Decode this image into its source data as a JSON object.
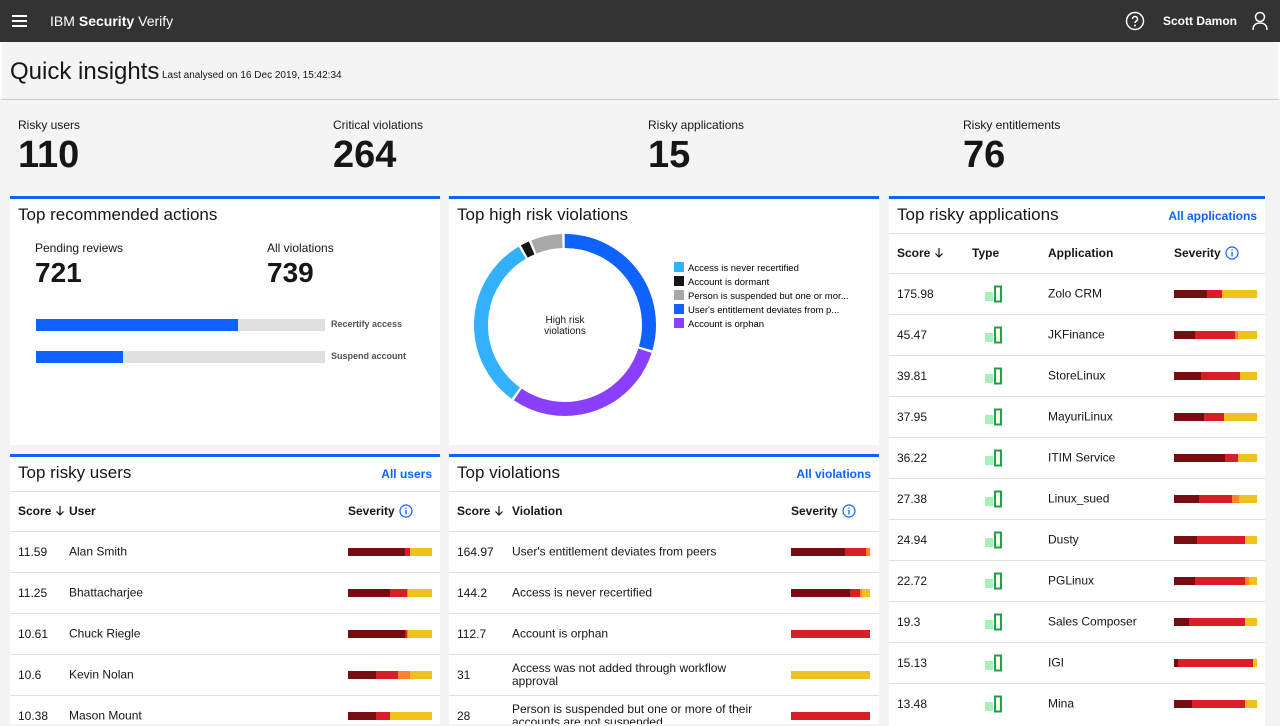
{
  "header": {
    "brand": "IBM",
    "product": "Security",
    "product_suffix": "Verify",
    "user": "Scott Damon"
  },
  "page": {
    "title": "Quick insights",
    "subtitle": "Last analysed on 16 Dec 2019, 15:42:34"
  },
  "metrics": [
    {
      "label": "Risky users",
      "value": 110
    },
    {
      "label": "Critical violations",
      "value": 264
    },
    {
      "label": "Risky applications",
      "value": 15
    },
    {
      "label": "Risky entitlements",
      "value": 76
    }
  ],
  "severity_colors": [
    "#750e13",
    "#da1e28",
    "#ff832b",
    "#f1c21b"
  ],
  "actions": {
    "title": "Top recommended actions",
    "stats": [
      {
        "label": "Pending reviews",
        "value": 721
      },
      {
        "label": "All violations",
        "value": 739
      }
    ],
    "bars": [
      {
        "label": "Recertify access",
        "value": 70
      },
      {
        "label": "Suspend account",
        "value": 30
      }
    ]
  },
  "violations_chart": {
    "title": "Top high risk violations",
    "center_label": "High risk violations",
    "segments": [
      {
        "label": "Access is never recertified",
        "color": "#33b1ff",
        "value": 32
      },
      {
        "label": "Account is dormant",
        "color": "#161616",
        "value": 2
      },
      {
        "label": "Person is suspended but one or mor...",
        "color": "#a8a8a8",
        "value": 6
      },
      {
        "label": "User's entitlement deviates from p...",
        "color": "#0f62fe",
        "value": 30
      },
      {
        "label": "Account is orphan",
        "color": "#8a3ffc",
        "value": 30
      }
    ]
  },
  "risky_users": {
    "title": "Top risky users",
    "link": "All users",
    "columns": [
      "Score",
      "User",
      "Severity"
    ],
    "rows": [
      {
        "score": 11.59,
        "name": "Alan Smith",
        "severity": [
          68,
          6,
          0,
          26
        ]
      },
      {
        "score": 11.25,
        "name": "Bhattacharjee",
        "severity": [
          50,
          20,
          2,
          28
        ]
      },
      {
        "score": 10.61,
        "name": "Chuck Riegle",
        "severity": [
          68,
          2,
          2,
          28
        ]
      },
      {
        "score": 10.6,
        "name": "Kevin Nolan",
        "severity": [
          33,
          27,
          14,
          26
        ]
      },
      {
        "score": 10.38,
        "name": "Mason Mount",
        "severity": [
          33,
          17,
          0,
          50
        ]
      }
    ]
  },
  "violations": {
    "title": "Top violations",
    "link": "All violations",
    "columns": [
      "Score",
      "Violation",
      "Severity"
    ],
    "rows": [
      {
        "score": 164.97,
        "name": "User's entitlement deviates from peers",
        "severity": [
          68,
          27,
          5,
          0
        ]
      },
      {
        "score": 144.2,
        "name": "Access is never recertified",
        "severity": [
          75,
          12,
          3,
          10
        ]
      },
      {
        "score": 112.7,
        "name": "Account is orphan",
        "severity": [
          0,
          100,
          0,
          0
        ]
      },
      {
        "score": 31,
        "name": "Access was not added through workflow approval",
        "severity": [
          0,
          0,
          0,
          100
        ]
      },
      {
        "score": 28,
        "name": "Person is suspended but one or more of their accounts are not suspended",
        "severity": [
          0,
          100,
          0,
          0
        ]
      }
    ]
  },
  "applications": {
    "title": "Top risky applications",
    "link": "All applications",
    "columns": [
      "Score",
      "Type",
      "Application",
      "Severity"
    ],
    "rows": [
      {
        "score": 175.98,
        "name": "Zolo CRM",
        "severity": [
          40,
          18,
          0,
          42
        ]
      },
      {
        "score": 45.47,
        "name": "JKFinance",
        "severity": [
          25,
          48,
          4,
          23
        ]
      },
      {
        "score": 39.81,
        "name": "StoreLinux",
        "severity": [
          33,
          47,
          0,
          20
        ]
      },
      {
        "score": 37.95,
        "name": "MayuriLinux",
        "severity": [
          36,
          24,
          0,
          40
        ]
      },
      {
        "score": 36.22,
        "name": "ITIM Service",
        "severity": [
          62,
          15,
          0,
          23
        ]
      },
      {
        "score": 27.38,
        "name": "Linux_sued",
        "severity": [
          30,
          40,
          8,
          22
        ]
      },
      {
        "score": 24.94,
        "name": "Dusty",
        "severity": [
          28,
          58,
          0,
          14
        ]
      },
      {
        "score": 22.72,
        "name": "PGLinux",
        "severity": [
          25,
          60,
          5,
          10
        ]
      },
      {
        "score": 19.3,
        "name": "Sales Composer",
        "severity": [
          18,
          68,
          0,
          14
        ]
      },
      {
        "score": 15.13,
        "name": "IGI",
        "severity": [
          5,
          90,
          0,
          5
        ]
      },
      {
        "score": 13.48,
        "name": "Mina",
        "severity": [
          22,
          64,
          0,
          14
        ]
      }
    ]
  }
}
